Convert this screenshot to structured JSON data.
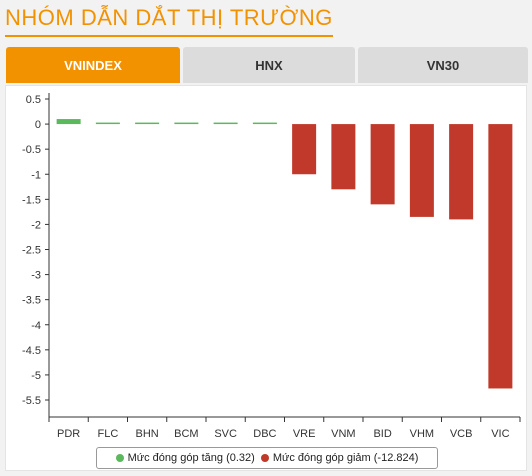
{
  "header": {
    "title": "NHÓM DẪN DẮT THỊ TRƯỜNG"
  },
  "tabs": [
    {
      "label": "VNINDEX",
      "active": true
    },
    {
      "label": "HNX",
      "active": false
    },
    {
      "label": "VN30",
      "active": false
    }
  ],
  "colors": {
    "accent": "#f39200",
    "positive": "#5cb85c",
    "negative": "#c0392b"
  },
  "chart_data": {
    "type": "bar",
    "categories": [
      "PDR",
      "FLC",
      "BHN",
      "BCM",
      "SVC",
      "DBC",
      "VRE",
      "VNM",
      "BID",
      "VHM",
      "VCB",
      "VIC"
    ],
    "values": [
      0.1,
      0.02,
      0.02,
      0.02,
      0.02,
      0.005,
      -1.0,
      -1.3,
      -1.6,
      -1.85,
      -1.9,
      -5.27
    ],
    "yticks": [
      "0.5",
      "0",
      "-0.5",
      "-1",
      "-1.5",
      "-2",
      "-2.5",
      "-3",
      "-3.5",
      "-4",
      "-4.5",
      "-5",
      "-5.5"
    ],
    "ylim": [
      -5.5,
      0.5
    ],
    "grid": false,
    "legend_position": "bottom",
    "legend": [
      {
        "label": "Mức đóng góp tăng (0.32)",
        "color": "#5cb85c"
      },
      {
        "label": "Mức đóng góp giảm (-12.824)",
        "color": "#c0392b"
      }
    ]
  }
}
